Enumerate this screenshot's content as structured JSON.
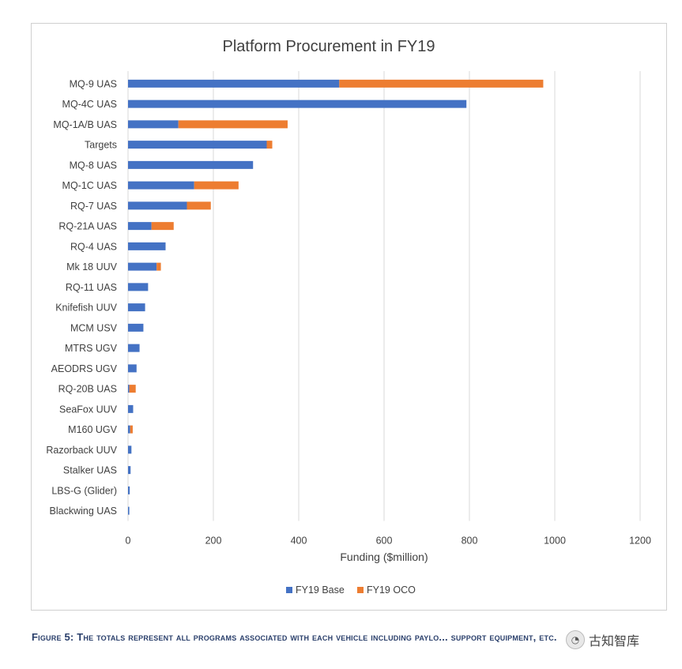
{
  "chart_data": {
    "type": "bar",
    "orientation": "horizontal",
    "stacked": true,
    "title": "Platform Procurement in FY19",
    "xlabel": "Funding ($million)",
    "ylabel": "",
    "xlim": [
      0,
      1200
    ],
    "x_ticks": [
      0,
      200,
      400,
      600,
      800,
      1000,
      1200
    ],
    "grid": true,
    "legend_position": "bottom",
    "categories": [
      "MQ-9 UAS",
      "MQ-4C UAS",
      "MQ-1A/B UAS",
      "Targets",
      "MQ-8 UAS",
      "MQ-1C UAS",
      "RQ-7 UAS",
      "RQ-21A UAS",
      "RQ-4 UAS",
      "Mk 18 UUV",
      "RQ-11 UAS",
      "Knifefish UUV",
      "MCM USV",
      "MTRS UGV",
      "AEODRS UGV",
      "RQ-20B UAS",
      "SeaFox UUV",
      "M160 UGV",
      "Razorback UUV",
      "Stalker UAS",
      "LBS-G (Glider)",
      "Blackwing UAS"
    ],
    "series": [
      {
        "name": "FY19 Base",
        "color": "#4472c4",
        "values": [
          495,
          793,
          118,
          325,
          293,
          155,
          138,
          55,
          88,
          67,
          47,
          40,
          36,
          27,
          20,
          3,
          12,
          5,
          8,
          6,
          4,
          3
        ]
      },
      {
        "name": "FY19 OCO",
        "color": "#ed7d31",
        "values": [
          478,
          0,
          256,
          13,
          0,
          104,
          56,
          52,
          0,
          10,
          0,
          0,
          0,
          0,
          0,
          15,
          0,
          6,
          0,
          0,
          0,
          0
        ]
      }
    ]
  },
  "caption": {
    "lead": "Figure 5:",
    "text": "The totals represent all programs associated with each vehicle including paylo... support equipment, etc."
  },
  "watermark": {
    "icon": "wechat-icon",
    "text": "古知智库"
  }
}
